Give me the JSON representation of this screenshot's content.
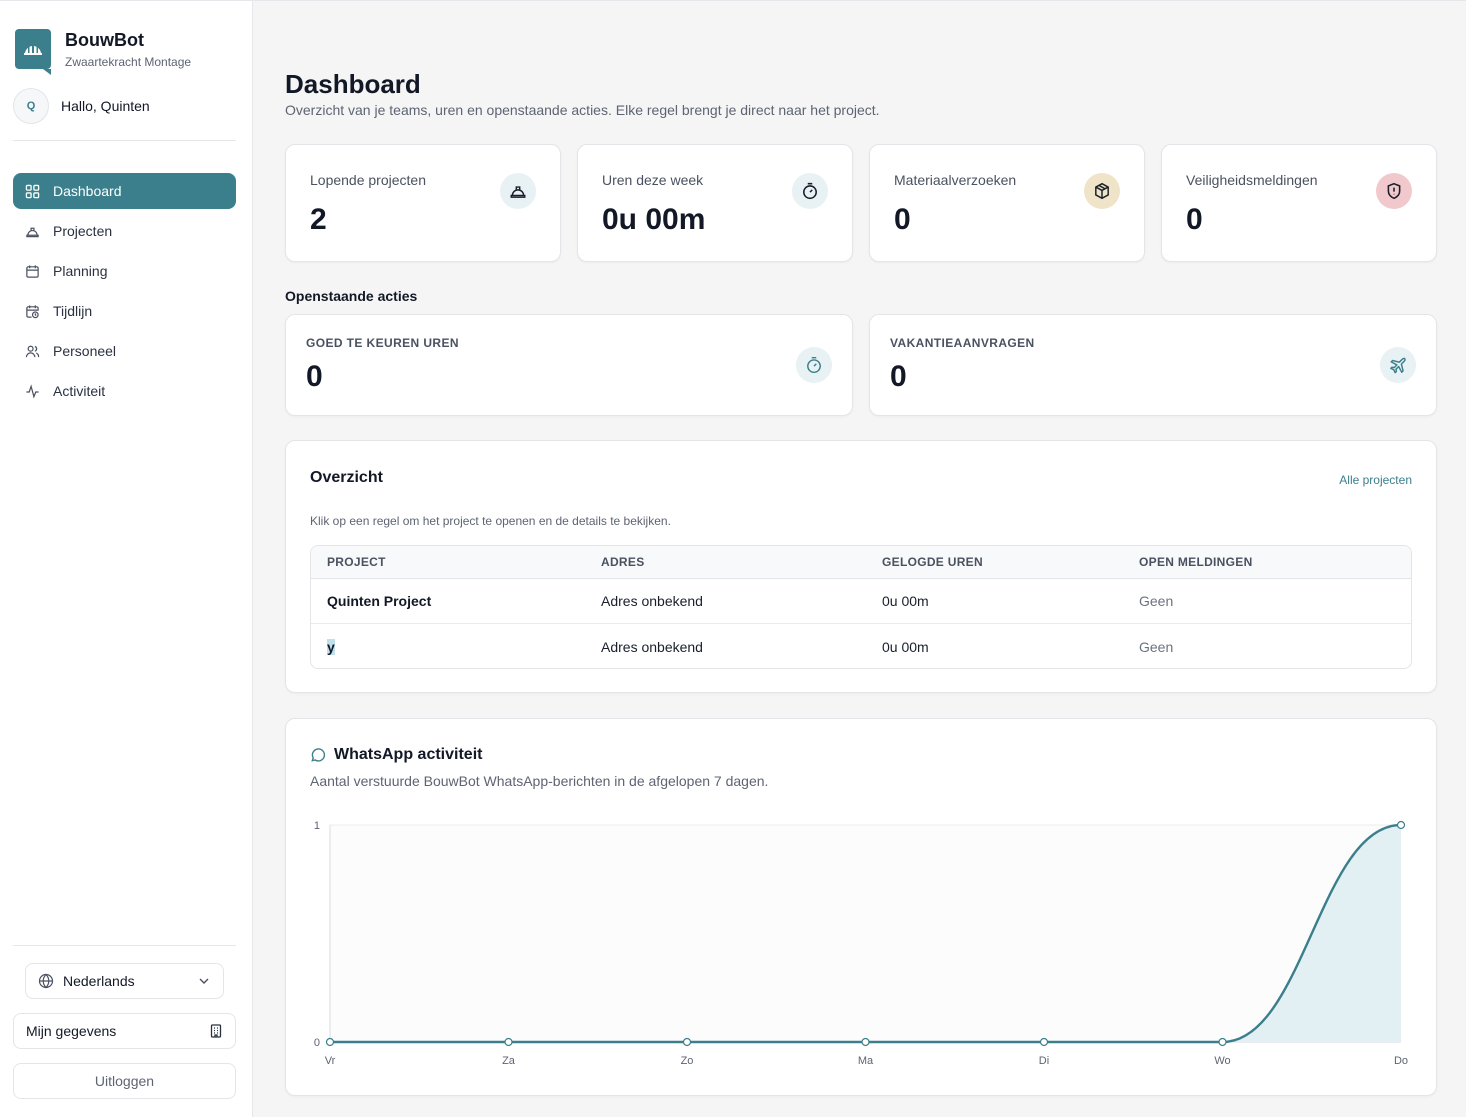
{
  "brand": {
    "title": "BouwBot",
    "subtitle": "Zwaartekracht Montage"
  },
  "user": {
    "initial": "Q",
    "greeting": "Hallo, Quinten"
  },
  "nav": {
    "items": [
      {
        "label": "Dashboard",
        "icon": "grid-icon",
        "active": true
      },
      {
        "label": "Projecten",
        "icon": "hardhat-icon"
      },
      {
        "label": "Planning",
        "icon": "calendar-icon"
      },
      {
        "label": "Tijdlijn",
        "icon": "calendar-clock-icon"
      },
      {
        "label": "Personeel",
        "icon": "users-icon"
      },
      {
        "label": "Activiteit",
        "icon": "activity-icon"
      }
    ]
  },
  "sidebar_footer": {
    "language": "Nederlands",
    "my_details": "Mijn gegevens",
    "logout": "Uitloggen"
  },
  "header": {
    "title": "Dashboard",
    "subtitle": "Overzicht van je teams, uren en openstaande acties. Elke regel brengt je direct naar het project."
  },
  "stats": [
    {
      "label": "Lopende projecten",
      "value": "2",
      "icon": "hardhat-icon",
      "icon_bg": "#e8f1f3"
    },
    {
      "label": "Uren deze week",
      "value": "0u 00m",
      "icon": "timer-icon",
      "icon_bg": "#e8f1f3"
    },
    {
      "label": "Materiaalverzoeken",
      "value": "0",
      "icon": "package-icon",
      "icon_bg": "#efe3c8"
    },
    {
      "label": "Veiligheidsmeldingen",
      "value": "0",
      "icon": "shield-alert-icon",
      "icon_bg": "#f1c9cc"
    }
  ],
  "open_actions": {
    "title": "Openstaande acties",
    "items": [
      {
        "label": "GOED TE KEUREN UREN",
        "value": "0",
        "icon": "timer-icon"
      },
      {
        "label": "VAKANTIEAANVRAGEN",
        "value": "0",
        "icon": "plane-icon"
      }
    ]
  },
  "overview": {
    "title": "Overzicht",
    "link": "Alle projecten",
    "subtitle": "Klik op een regel om het project te openen en de details te bekijken.",
    "columns": [
      "PROJECT",
      "ADRES",
      "GELOGDE UREN",
      "OPEN MELDINGEN"
    ],
    "rows": [
      {
        "project": "Quinten Project",
        "address": "Adres onbekend",
        "hours": "0u 00m",
        "alerts": "Geen"
      },
      {
        "project": "y",
        "address": "Adres onbekend",
        "hours": "0u 00m",
        "alerts": "Geen"
      }
    ]
  },
  "whatsapp": {
    "title": "WhatsApp activiteit",
    "subtitle": "Aantal verstuurde BouwBot WhatsApp-berichten in de afgelopen 7 dagen."
  },
  "chart_data": {
    "type": "area",
    "categories": [
      "Vr",
      "Za",
      "Zo",
      "Ma",
      "Di",
      "Wo",
      "Do"
    ],
    "series": [
      {
        "values": [
          0,
          0,
          0,
          0,
          0,
          0,
          1
        ]
      }
    ],
    "ylim": [
      0,
      1
    ],
    "yticks": [
      "0",
      "1"
    ],
    "color": "#3b7f8c",
    "fill": "#e2eff3",
    "grid": false
  },
  "colors": {
    "accent": "#3b7f8c"
  }
}
